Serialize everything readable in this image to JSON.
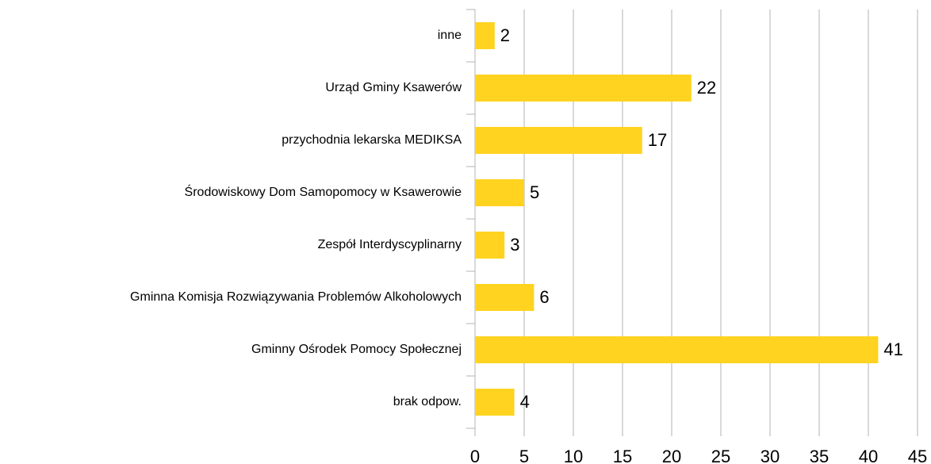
{
  "chart_data": {
    "type": "bar",
    "categories": [
      "inne",
      "Urząd Gminy Ksawerów",
      "przychodnia lekarska MEDIKSA",
      "Środowiskowy Dom Samopomocy w Ksawerowie",
      "Zespół Interdyscyplinarny",
      "Gminna Komisja Rozwiązywania Problemów Alkoholowych",
      "Gminny Ośrodek Pomocy Społecznej",
      "brak odpow."
    ],
    "values": [
      2,
      22,
      17,
      5,
      3,
      6,
      41,
      4
    ],
    "color": "#ffd320",
    "xlim": [
      0,
      45
    ],
    "xticks": [
      0,
      5,
      10,
      15,
      20,
      25,
      30,
      35,
      40,
      45
    ],
    "grid": true
  }
}
